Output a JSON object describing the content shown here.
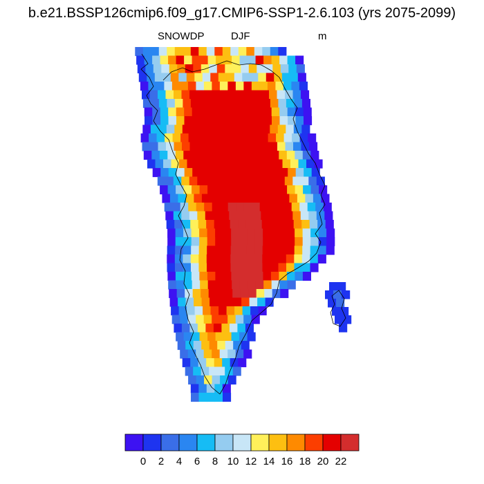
{
  "title": "b.e21.BSSP126cmip6.f09_g17.CMIP6-SSP1-2.6.103 (yrs 2075-2099)",
  "variable": "SNOWDP",
  "season": "DJF",
  "units": "m",
  "colorbar": {
    "colors": [
      "#3d12f2",
      "#1e34f0",
      "#3a6ee8",
      "#2a86f1",
      "#16bcf5",
      "#95ccf0",
      "#c8e6f7",
      "#fff05a",
      "#fdbf11",
      "#fe8a00",
      "#fc3e00",
      "#e40000",
      "#d42d2d"
    ],
    "tick_labels": [
      "0",
      "2",
      "4",
      "6",
      "8",
      "10",
      "12",
      "14",
      "16",
      "18",
      "20",
      "22"
    ]
  }
}
